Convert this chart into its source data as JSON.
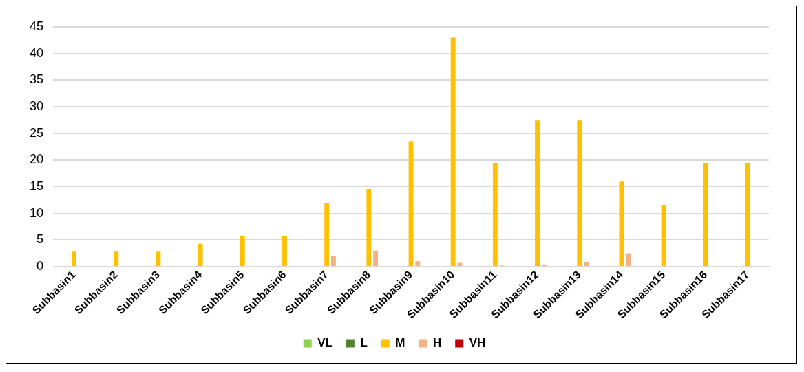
{
  "chart_data": {
    "type": "bar",
    "categories": [
      "Subbasin1",
      "Subbasin2",
      "Subbasin3",
      "Subbasin4",
      "Subbasin5",
      "Subbasin6",
      "Subbasin7",
      "Subbasin8",
      "Subbasin9",
      "Subbasin10",
      "Subbasin11",
      "Subbasin12",
      "Subbasin13",
      "Subbasin14",
      "Subbasin15",
      "Subbasin16",
      "Subbasin17"
    ],
    "series": [
      {
        "name": "VL",
        "color": "#92d050",
        "values": [
          0,
          0,
          0,
          0,
          0,
          0,
          0,
          0,
          0,
          0,
          0,
          0,
          0,
          0,
          0,
          0,
          0
        ]
      },
      {
        "name": "L",
        "color": "#548235",
        "values": [
          0,
          0,
          0,
          0,
          0,
          0,
          0,
          0,
          0,
          0,
          0,
          0,
          0,
          0,
          0,
          0,
          0
        ]
      },
      {
        "name": "M",
        "color": "#ffc000",
        "values": [
          2.8,
          2.8,
          2.8,
          4.3,
          5.7,
          5.7,
          12,
          14.5,
          23.5,
          43,
          19.5,
          27.5,
          27.5,
          16,
          11.5,
          19.5,
          19.5
        ]
      },
      {
        "name": "H",
        "color": "#f4b183",
        "values": [
          0,
          0,
          0,
          0,
          0,
          0,
          2,
          3,
          1,
          0.7,
          0.2,
          0.4,
          0.8,
          2.5,
          0,
          0,
          0
        ]
      },
      {
        "name": "VH",
        "color": "#c00000",
        "values": [
          0,
          0,
          0,
          0,
          0,
          0,
          0,
          0,
          0,
          0,
          0,
          0,
          0,
          0,
          0,
          0,
          0
        ]
      }
    ],
    "ylim": [
      0,
      45
    ],
    "yticks": [
      0,
      5,
      10,
      15,
      20,
      25,
      30,
      35,
      40,
      45
    ],
    "grid": "y",
    "legend": "bottom"
  }
}
